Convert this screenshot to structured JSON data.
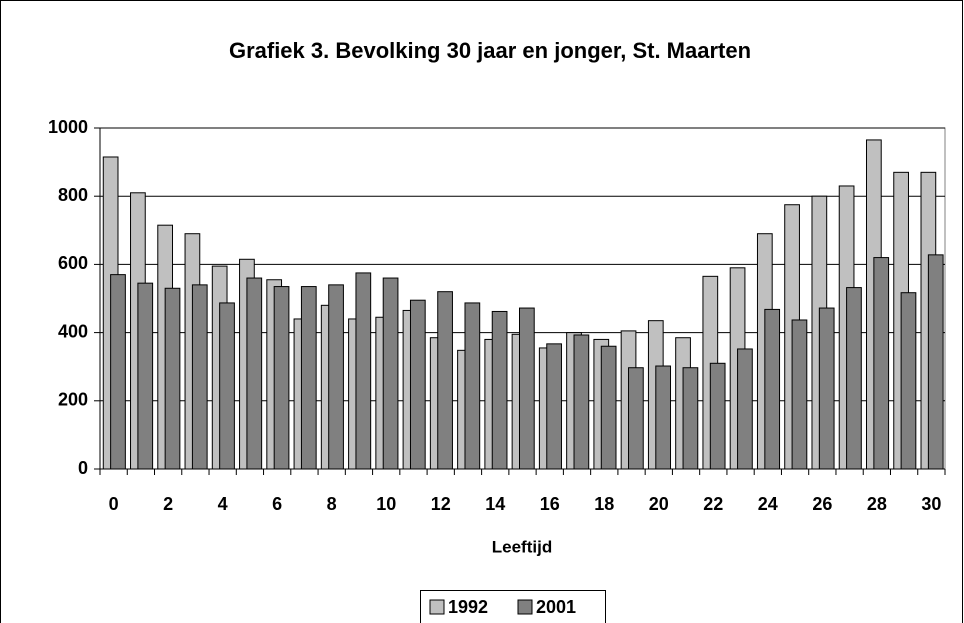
{
  "chart_data": {
    "type": "bar",
    "title": "Grafiek 3. Bevolking 30 jaar en jonger, St. Maarten",
    "x_label": "Leeftijd",
    "categories": [
      0,
      null,
      2,
      null,
      4,
      null,
      6,
      null,
      8,
      null,
      10,
      null,
      12,
      null,
      14,
      null,
      16,
      null,
      18,
      null,
      20,
      null,
      22,
      null,
      24,
      null,
      26,
      null,
      28,
      null,
      30
    ],
    "series": [
      {
        "name": "1992",
        "color": "#c0c0c0",
        "values": [
          915,
          810,
          715,
          690,
          595,
          615,
          555,
          440,
          480,
          440,
          445,
          465,
          385,
          348,
          380,
          395,
          355,
          400,
          380,
          405,
          435,
          385,
          565,
          590,
          690,
          775,
          800,
          830,
          965,
          870,
          870
        ]
      },
      {
        "name": "2001",
        "color": "#808080",
        "values": [
          570,
          545,
          530,
          540,
          487,
          560,
          535,
          535,
          540,
          575,
          560,
          495,
          520,
          487,
          462,
          472,
          367,
          393,
          360,
          297,
          302,
          297,
          310,
          352,
          468,
          437,
          472,
          532,
          620,
          517,
          628
        ]
      }
    ],
    "ylim": [
      0,
      1000
    ],
    "yticks": [
      0,
      200,
      400,
      600,
      800,
      1000
    ],
    "grid": true,
    "legend": "bottom"
  }
}
